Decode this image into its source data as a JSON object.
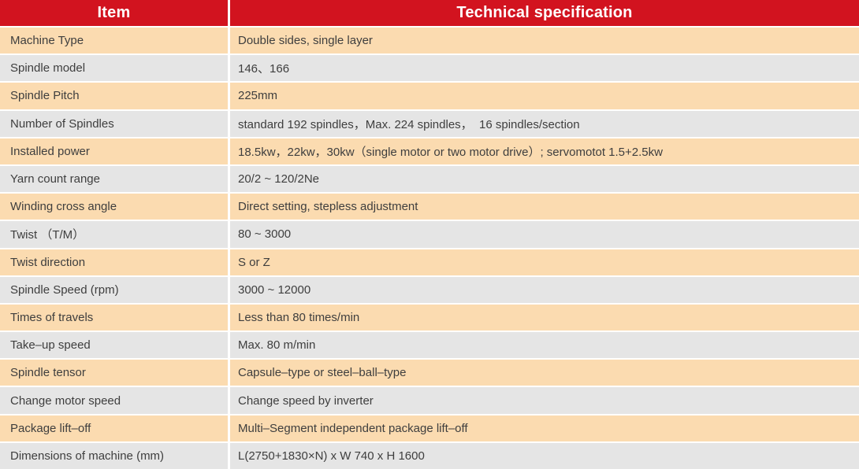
{
  "table": {
    "columns": [
      "Item",
      "Technical specification"
    ],
    "rows": [
      {
        "item": "Machine Type",
        "spec": "Double sides, single layer"
      },
      {
        "item": "Spindle model",
        "spec": "146、166"
      },
      {
        "item": "Spindle Pitch",
        "spec": "225mm"
      },
      {
        "item": "Number of Spindles",
        "spec": "standard 192 spindles，Max. 224 spindles，  16 spindles/section"
      },
      {
        "item": "Installed power",
        "spec": "18.5kw，22kw，30kw（single motor or two motor drive）; servomotot 1.5+2.5kw"
      },
      {
        "item": "Yarn count range",
        "spec": "20/2 ~ 120/2Ne"
      },
      {
        "item": "Winding cross angle",
        "spec": "Direct setting, stepless adjustment"
      },
      {
        "item": "Twist （T/M）",
        "spec": "80 ~ 3000"
      },
      {
        "item": "Twist direction",
        "spec": "S or Z"
      },
      {
        "item": "Spindle Speed (rpm)",
        "spec": "3000 ~ 12000"
      },
      {
        "item": "Times of travels",
        "spec": "Less than 80 times/min"
      },
      {
        "item": "Take–up speed",
        "spec": "Max. 80 m/min"
      },
      {
        "item": "Spindle tensor",
        "spec": "Capsule–type or steel–ball–type"
      },
      {
        "item": "Change motor speed",
        "spec": "Change speed by inverter"
      },
      {
        "item": "Package lift–off",
        "spec": "Multi–Segment independent package lift–off"
      },
      {
        "item": "Dimensions of machine (mm)",
        "spec": "L(2750+1830×N) x W 740 x H 1600"
      }
    ]
  },
  "colors": {
    "header_bg": "#d2131f",
    "header_text": "#ffffff",
    "row_peach": "#fbdbb0",
    "row_gray": "#e5e5e5",
    "body_text": "#3e3e3e",
    "divider": "#ffffff"
  }
}
